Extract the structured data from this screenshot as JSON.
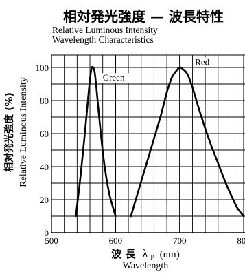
{
  "chart_data": {
    "type": "line",
    "title": "相対発光強度 — 波長特性",
    "subtitle": [
      "Relative Luminous Intensity",
      "Wavelength Characteristics"
    ],
    "xlabel": "波長 λP (nm)",
    "xlabel_jp": "波 長",
    "xlabel_symbol": "λ",
    "xlabel_subscript": "P",
    "xlabel_unit": "(nm)",
    "xlabel_en": "Wavelength",
    "ylabel_jp": "相対発光強度 (%)",
    "ylabel_en": "Relative Luminous Intensity",
    "xlim": [
      500,
      800
    ],
    "ylim": [
      0,
      100
    ],
    "xticks": [
      "500",
      "600",
      "700",
      "800"
    ],
    "yticks": [
      "0",
      "20",
      "40",
      "60",
      "80",
      "100"
    ],
    "grid": true,
    "series": [
      {
        "name": "Green",
        "x": [
          538,
          545,
          552,
          558,
          561,
          563,
          565,
          567,
          569,
          572,
          577,
          583,
          590,
          597,
          600
        ],
        "y": [
          10,
          33,
          60,
          85,
          96,
          100,
          100,
          98,
          92,
          80,
          60,
          40,
          24,
          14,
          10
        ]
      },
      {
        "name": "Red",
        "x": [
          624,
          630,
          640,
          650,
          660,
          670,
          680,
          688,
          695,
          700,
          705,
          712,
          720,
          730,
          740,
          750,
          760,
          770,
          780,
          790,
          800
        ],
        "y": [
          10,
          18,
          31,
          44,
          57,
          70,
          85,
          94,
          98,
          100,
          99,
          96,
          88,
          75,
          63,
          52,
          42,
          32,
          23,
          15,
          10
        ]
      }
    ]
  }
}
